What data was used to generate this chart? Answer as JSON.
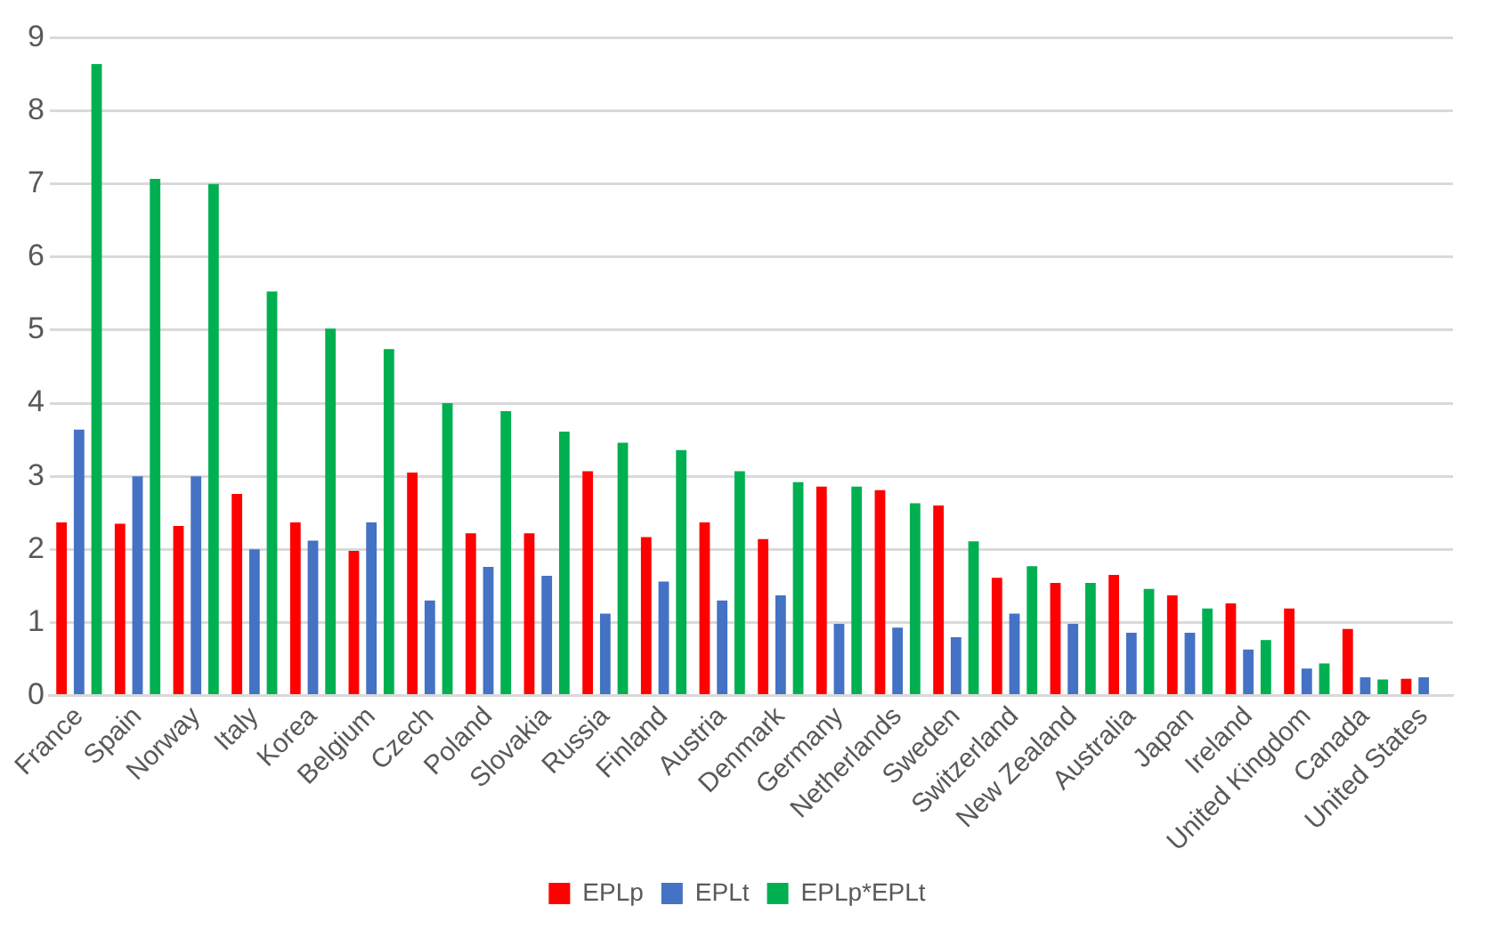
{
  "chart_data": {
    "type": "bar",
    "categories": [
      "France",
      "Spain",
      "Norway",
      "Italy",
      "Korea",
      "Belgium",
      "Czech",
      "Poland",
      "Slovakia",
      "Russia",
      "Finland",
      "Austria",
      "Denmark",
      "Germany",
      "Netherlands",
      "Sweden",
      "Switzerland",
      "New Zealand",
      "Australia",
      "Japan",
      "Ireland",
      "United Kingdom",
      "Canada",
      "United States"
    ],
    "series": [
      {
        "name": "EPLp",
        "color": "#ff0000",
        "values": [
          2.37,
          2.35,
          2.32,
          2.76,
          2.37,
          1.98,
          3.05,
          2.22,
          2.22,
          3.07,
          2.17,
          2.37,
          2.14,
          2.86,
          2.81,
          2.6,
          1.61,
          1.54,
          1.65,
          1.37,
          1.26,
          1.19,
          0.91,
          0.23
        ]
      },
      {
        "name": "EPLt",
        "color": "#4472c4",
        "values": [
          3.64,
          3.0,
          3.0,
          2.0,
          2.12,
          2.37,
          1.3,
          1.76,
          1.64,
          1.12,
          1.56,
          1.3,
          1.37,
          0.98,
          0.93,
          0.8,
          1.12,
          0.98,
          0.86,
          0.86,
          0.63,
          0.37,
          0.25,
          0.25
        ]
      },
      {
        "name": "EPLp*EPLt",
        "color": "#00b050",
        "values": [
          8.64,
          7.07,
          7.0,
          5.53,
          5.02,
          4.74,
          4.0,
          3.89,
          3.61,
          3.46,
          3.36,
          3.07,
          2.92,
          2.86,
          2.63,
          2.11,
          1.77,
          1.54,
          1.46,
          1.19,
          0.76,
          0.44,
          0.22,
          null
        ]
      }
    ],
    "ylim": [
      0,
      9
    ],
    "yticks": [
      0,
      1,
      2,
      3,
      4,
      5,
      6,
      7,
      8,
      9
    ],
    "grid": "y",
    "legend": "bottom"
  }
}
